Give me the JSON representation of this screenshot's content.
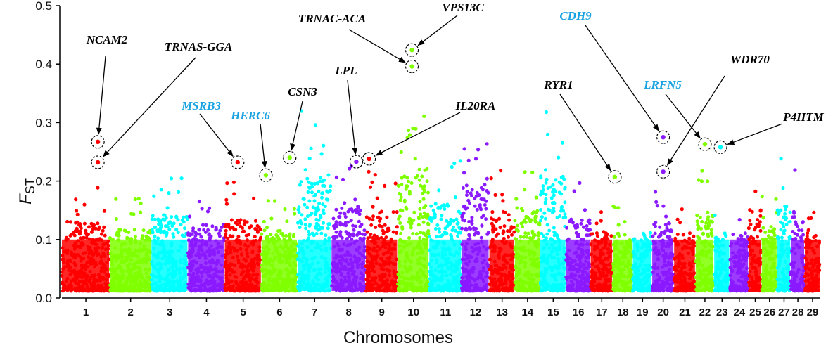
{
  "chart_data": {
    "type": "scatter",
    "subtype": "manhattan",
    "title": "",
    "xlabel": "Chromosomes",
    "ylabel_main": "F",
    "ylabel_sub": "ST",
    "ylim": [
      0,
      0.5
    ],
    "yticks": [
      "0.0",
      "0.1",
      "0.2",
      "0.3",
      "0.4",
      "0.5"
    ],
    "grid": false,
    "legend": "none",
    "colors": [
      "#ff0000",
      "#7fff00",
      "#00ffff",
      "#8b1aff"
    ],
    "chromosomes": [
      {
        "label": "1",
        "size": 158,
        "max": 0.19
      },
      {
        "label": "2",
        "size": 137,
        "max": 0.17
      },
      {
        "label": "3",
        "size": 121,
        "max": 0.21
      },
      {
        "label": "4",
        "size": 121,
        "max": 0.18
      },
      {
        "label": "5",
        "size": 121,
        "max": 0.2
      },
      {
        "label": "6",
        "size": 119,
        "max": 0.17
      },
      {
        "label": "7",
        "size": 112,
        "max": 0.32
      },
      {
        "label": "8",
        "size": 113,
        "max": 0.23
      },
      {
        "label": "9",
        "size": 105,
        "max": 0.22
      },
      {
        "label": "10",
        "size": 104,
        "max": 0.34
      },
      {
        "label": "11",
        "size": 107,
        "max": 0.24
      },
      {
        "label": "12",
        "size": 91,
        "max": 0.3
      },
      {
        "label": "13",
        "size": 84,
        "max": 0.22
      },
      {
        "label": "14",
        "size": 84,
        "max": 0.23
      },
      {
        "label": "15",
        "size": 85,
        "max": 0.32
      },
      {
        "label": "16",
        "size": 81,
        "max": 0.2
      },
      {
        "label": "17",
        "size": 73,
        "max": 0.16
      },
      {
        "label": "18",
        "size": 66,
        "max": 0.16
      },
      {
        "label": "19",
        "size": 64,
        "max": 0.15
      },
      {
        "label": "20",
        "size": 72,
        "max": 0.19
      },
      {
        "label": "21",
        "size": 71,
        "max": 0.16
      },
      {
        "label": "22",
        "size": 61,
        "max": 0.22
      },
      {
        "label": "23",
        "size": 52,
        "max": 0.15
      },
      {
        "label": "24",
        "size": 62,
        "max": 0.16
      },
      {
        "label": "25",
        "size": 43,
        "max": 0.22
      },
      {
        "label": "26",
        "size": 51,
        "max": 0.18
      },
      {
        "label": "27",
        "size": 45,
        "max": 0.24
      },
      {
        "label": "28",
        "size": 46,
        "max": 0.22
      },
      {
        "label": "29",
        "size": 51,
        "max": 0.16
      }
    ],
    "highlights": [
      {
        "gene": "NCAM2",
        "chrom": 1,
        "pos": 0.75,
        "y": 0.267,
        "label_color": "#000000"
      },
      {
        "gene": "TRNAS-GGA",
        "chrom": 1,
        "pos": 0.75,
        "y": 0.232,
        "label_color": "#000000"
      },
      {
        "gene": "MSRB3",
        "chrom": 5,
        "pos": 0.35,
        "y": 0.232,
        "label_color": "#1aa3e0"
      },
      {
        "gene": "HERC6",
        "chrom": 6,
        "pos": 0.12,
        "y": 0.21,
        "label_color": "#1aa3e0"
      },
      {
        "gene": "CSN3",
        "chrom": 6,
        "pos": 0.78,
        "y": 0.24,
        "label_color": "#000000"
      },
      {
        "gene": "LPL",
        "chrom": 8,
        "pos": 0.72,
        "y": 0.233,
        "label_color": "#000000"
      },
      {
        "gene": "IL20RA",
        "chrom": 9,
        "pos": 0.1,
        "y": 0.238,
        "label_color": "#000000"
      },
      {
        "gene": "TRNAC-ACA",
        "chrom": 10,
        "pos": 0.45,
        "y": 0.396,
        "label_color": "#000000"
      },
      {
        "gene": "VPS13C",
        "chrom": 10,
        "pos": 0.45,
        "y": 0.424,
        "label_color": "#000000"
      },
      {
        "gene": "RYR1",
        "chrom": 18,
        "pos": 0.1,
        "y": 0.207,
        "label_color": "#000000"
      },
      {
        "gene": "CDH9",
        "chrom": 20,
        "pos": 0.5,
        "y": 0.275,
        "label_color": "#1aa3e0"
      },
      {
        "gene": "WDR70",
        "chrom": 20,
        "pos": 0.5,
        "y": 0.216,
        "label_color": "#000000"
      },
      {
        "gene": "LRFN5",
        "chrom": 22,
        "pos": 0.5,
        "y": 0.263,
        "label_color": "#1aa3e0"
      },
      {
        "gene": "P4HTM",
        "chrom": 23,
        "pos": 0.4,
        "y": 0.258,
        "label_color": "#000000"
      }
    ]
  }
}
